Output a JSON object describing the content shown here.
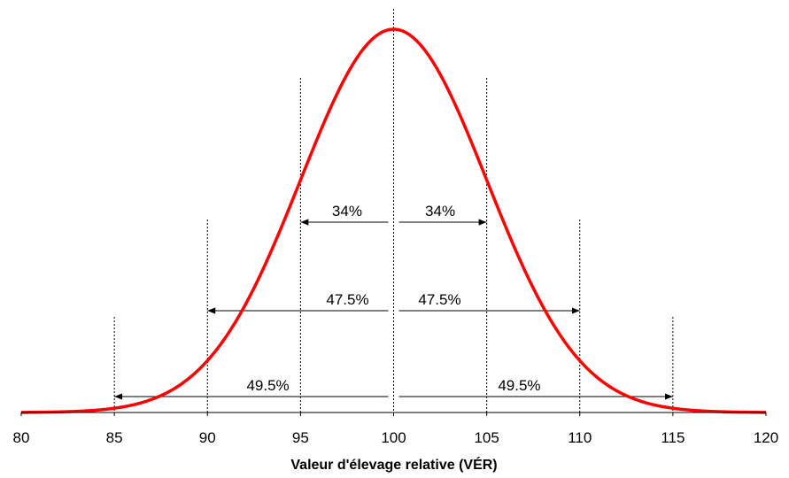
{
  "chart_data": {
    "type": "line",
    "title": "",
    "xlabel": "Valeur d'élevage relative (VÉR)",
    "ylabel": "",
    "xlim": [
      80,
      120
    ],
    "x_ticks": [
      "80",
      "85",
      "90",
      "95",
      "100",
      "105",
      "110",
      "115",
      "120"
    ],
    "grid": false,
    "legend": "none",
    "series": [
      {
        "color": "#ff0000",
        "distribution": "normal",
        "mean": 100,
        "sd": 5
      }
    ],
    "reference_lines": [
      {
        "x": 85
      },
      {
        "x": 90
      },
      {
        "x": 95
      },
      {
        "x": 100
      },
      {
        "x": 105
      },
      {
        "x": 110
      },
      {
        "x": 115
      }
    ],
    "annotations": [
      {
        "label": "34%",
        "from": 100,
        "to": 95
      },
      {
        "label": "34%",
        "from": 100,
        "to": 105
      },
      {
        "label": "47.5%",
        "from": 100,
        "to": 90
      },
      {
        "label": "47.5%",
        "from": 100,
        "to": 110
      },
      {
        "label": "49.5%",
        "from": 100,
        "to": 85
      },
      {
        "label": "49.5%",
        "from": 100,
        "to": 115
      }
    ]
  }
}
